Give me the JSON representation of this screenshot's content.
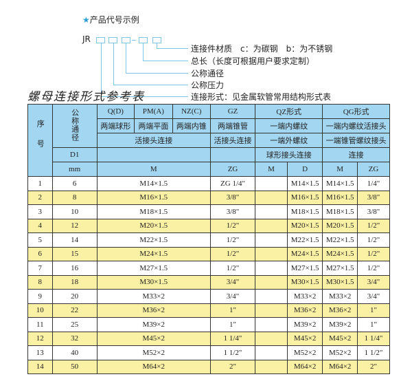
{
  "legend": {
    "title": "产品代号示例",
    "code_prefix": "JR",
    "items": [
      "连接件材质　c：为碳钢　b：为不锈钢",
      "总长（长度可根据用户要求定制）",
      "公称通径",
      "公称压力",
      "连接形式：见金属软管常用结构形式表"
    ]
  },
  "section_title": "螺母连接形式参考表",
  "colors": {
    "header": "#a3d6f0",
    "row_alt": "#fbf1a5",
    "legend_line": "#7cc6e6"
  },
  "table": {
    "h_seq": "序号",
    "h_nominal": "公称通径",
    "h_qd": "Q(D)",
    "h_pm": "PM(A)",
    "h_nz": "NZ(C)",
    "h_gz": "GZ",
    "h_qz": "QZ形式",
    "h_qg": "QG形式",
    "h_qd2": "两端球形",
    "h_pm2": "两端平面",
    "h_nz2": "两端内锥",
    "h_gz2": "两端锥管",
    "h_qz2": "一端内螺纹",
    "h_qg2": "一端内螺纹活接头",
    "h_union": "活接头连接",
    "h_gz3": "活接头连接",
    "h_qz3": "一端外螺纹",
    "h_qg3": "一端锥管螺纹接头",
    "h_d1": "D1",
    "h_qz4": "球形接头连接",
    "h_qg4": "连接",
    "h_mm": "mm",
    "h_m": "M",
    "h_zg": "ZG",
    "h_qz_m": "M",
    "h_qz_d": "D",
    "h_qg_m": "M",
    "h_qg_zg": "ZG",
    "rows": [
      {
        "no": "1",
        "dn": "6",
        "m": "M14×1.5",
        "zg": "ZG 1/4\"",
        "qz_m": "",
        "qz_d": "M14×1.5",
        "qg_m": "M14×1.5",
        "qg_zg": "1/4\""
      },
      {
        "no": "2",
        "dn": "8",
        "m": "M16×1.5",
        "zg": "3/8\"",
        "qz_m": "",
        "qz_d": "M16×1.5",
        "qg_m": "M16×1.5",
        "qg_zg": "3/8\""
      },
      {
        "no": "3",
        "dn": "10",
        "m": "M18×1.5",
        "zg": "3/8\"",
        "qz_m": "",
        "qz_d": "M18×1.5",
        "qg_m": "M18×1.5",
        "qg_zg": "3/8\""
      },
      {
        "no": "4",
        "dn": "12",
        "m": "M20×1.5",
        "zg": "1/2\"",
        "qz_m": "",
        "qz_d": "M20×1.5",
        "qg_m": "M20×1.5",
        "qg_zg": "1/2\""
      },
      {
        "no": "5",
        "dn": "14",
        "m": "M22×1.5",
        "zg": "1/2\"",
        "qz_m": "",
        "qz_d": "M22×1.5",
        "qg_m": "M22×1.5",
        "qg_zg": "1/2\""
      },
      {
        "no": "6",
        "dn": "15",
        "m": "M24×1.5",
        "zg": "1/2\"",
        "qz_m": "",
        "qz_d": "M24×1.5",
        "qg_m": "M24×1.5",
        "qg_zg": "1/2\""
      },
      {
        "no": "7",
        "dn": "16",
        "m": "M27×1.5",
        "zg": "1/2\"",
        "qz_m": "",
        "qz_d": "M27×1.5",
        "qg_m": "M27×1.5",
        "qg_zg": "1/2\""
      },
      {
        "no": "8",
        "dn": "18",
        "m": "M30×1.5",
        "zg": "3/4\"",
        "qz_m": "",
        "qz_d": "M30×1.5",
        "qg_m": "M30×1.5",
        "qg_zg": "3/4\""
      },
      {
        "no": "9",
        "dn": "20",
        "m": "M33×2",
        "zg": "3/4\"",
        "qz_m": "",
        "qz_d": "M33×2",
        "qg_m": "M33×2",
        "qg_zg": "3/4\""
      },
      {
        "no": "10",
        "dn": "22",
        "m": "M36×2",
        "zg": "1\"",
        "qz_m": "",
        "qz_d": "M36×2",
        "qg_m": "M36×2",
        "qg_zg": "1\""
      },
      {
        "no": "11",
        "dn": "25",
        "m": "M39×2",
        "zg": "1\"",
        "qz_m": "",
        "qz_d": "M39×2",
        "qg_m": "M39×2",
        "qg_zg": "1\""
      },
      {
        "no": "12",
        "dn": "32",
        "m": "M45×2",
        "zg": "1 1/4\"",
        "qz_m": "",
        "qz_d": "M45×2",
        "qg_m": "M45×2",
        "qg_zg": "1 1/4\""
      },
      {
        "no": "13",
        "dn": "40",
        "m": "M52×2",
        "zg": "1 1/2\"",
        "qz_m": "",
        "qz_d": "M52×2",
        "qg_m": "M52×2",
        "qg_zg": "1 1/2\""
      },
      {
        "no": "14",
        "dn": "50",
        "m": "M64×2",
        "zg": "2\"",
        "qz_m": "",
        "qz_d": "M64×2",
        "qg_m": "M64×2",
        "qg_zg": "2\""
      }
    ]
  }
}
